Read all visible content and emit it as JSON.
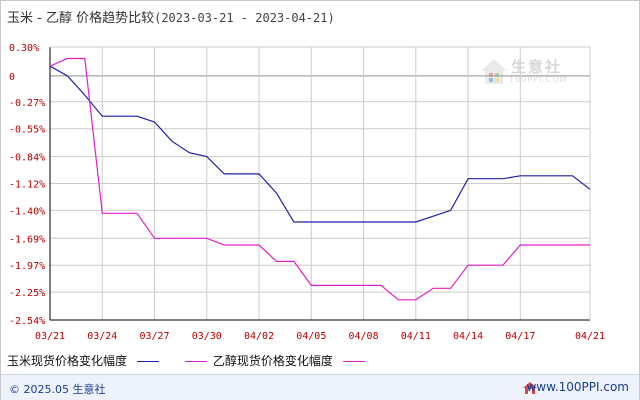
{
  "title": {
    "main": "玉米 - 乙醇 价格趋势比较",
    "range": "(2023-03-21 - 2023-04-21)"
  },
  "watermark": {
    "text": "生意社",
    "url": "100PPI.COM"
  },
  "legend": {
    "series1": "玉米现货价格变化幅度",
    "series2": "乙醇现货价格变化幅度"
  },
  "footer": {
    "copyright": "© 2025.05 生意社",
    "url": "www.100PPI.com"
  },
  "colors": {
    "series1": "#1f1fa8",
    "series2": "#e020c8",
    "grid": "#cccccc",
    "tick": "#b80000",
    "axis": "#000000"
  },
  "chart_data": {
    "type": "line",
    "title": "玉米 - 乙醇 价格趋势比较",
    "y_tick_labels": [
      "0.30%",
      "0",
      "-0.27%",
      "-0.55%",
      "-0.84%",
      "-1.12%",
      "-1.40%",
      "-1.69%",
      "-1.97%",
      "-2.25%",
      "-2.54%"
    ],
    "y_tick_values": [
      0.3,
      0,
      -0.27,
      -0.55,
      -0.84,
      -1.12,
      -1.4,
      -1.69,
      -1.97,
      -2.25,
      -2.54
    ],
    "ylim": [
      -2.54,
      0.3
    ],
    "x_tick_labels": [
      "03/21",
      "03/24",
      "03/27",
      "03/30",
      "04/02",
      "04/05",
      "04/08",
      "04/11",
      "04/14",
      "04/17",
      "04/21"
    ],
    "xlim": [
      "2023-03-21",
      "2023-04-21"
    ],
    "grid": true,
    "legend_position": "bottom",
    "series": [
      {
        "name": "玉米现货价格变化幅度",
        "color": "#1f1fa8",
        "points": [
          [
            "2023-03-21",
            0.1
          ],
          [
            "2023-03-22",
            0.0
          ],
          [
            "2023-03-23",
            -0.2
          ],
          [
            "2023-03-24",
            -0.42
          ],
          [
            "2023-03-25",
            -0.42
          ],
          [
            "2023-03-26",
            -0.42
          ],
          [
            "2023-03-27",
            -0.48
          ],
          [
            "2023-03-28",
            -0.68
          ],
          [
            "2023-03-29",
            -0.8
          ],
          [
            "2023-03-30",
            -0.84
          ],
          [
            "2023-03-31",
            -1.02
          ],
          [
            "2023-04-01",
            -1.02
          ],
          [
            "2023-04-02",
            -1.02
          ],
          [
            "2023-04-03",
            -1.22
          ],
          [
            "2023-04-04",
            -1.52
          ],
          [
            "2023-04-05",
            -1.52
          ],
          [
            "2023-04-06",
            -1.52
          ],
          [
            "2023-04-07",
            -1.52
          ],
          [
            "2023-04-08",
            -1.52
          ],
          [
            "2023-04-09",
            -1.52
          ],
          [
            "2023-04-10",
            -1.52
          ],
          [
            "2023-04-11",
            -1.52
          ],
          [
            "2023-04-12",
            -1.46
          ],
          [
            "2023-04-13",
            -1.4
          ],
          [
            "2023-04-14",
            -1.07
          ],
          [
            "2023-04-15",
            -1.07
          ],
          [
            "2023-04-16",
            -1.07
          ],
          [
            "2023-04-17",
            -1.04
          ],
          [
            "2023-04-18",
            -1.04
          ],
          [
            "2023-04-19",
            -1.04
          ],
          [
            "2023-04-20",
            -1.04
          ],
          [
            "2023-04-21",
            -1.18
          ]
        ]
      },
      {
        "name": "乙醇现货价格变化幅度",
        "color": "#e020c8",
        "points": [
          [
            "2023-03-21",
            0.1
          ],
          [
            "2023-03-22",
            0.18
          ],
          [
            "2023-03-23",
            0.18
          ],
          [
            "2023-03-24",
            -1.43
          ],
          [
            "2023-03-25",
            -1.43
          ],
          [
            "2023-03-26",
            -1.43
          ],
          [
            "2023-03-27",
            -1.69
          ],
          [
            "2023-03-28",
            -1.69
          ],
          [
            "2023-03-29",
            -1.69
          ],
          [
            "2023-03-30",
            -1.69
          ],
          [
            "2023-03-31",
            -1.76
          ],
          [
            "2023-04-01",
            -1.76
          ],
          [
            "2023-04-02",
            -1.76
          ],
          [
            "2023-04-03",
            -1.93
          ],
          [
            "2023-04-04",
            -1.93
          ],
          [
            "2023-04-05",
            -2.18
          ],
          [
            "2023-04-06",
            -2.18
          ],
          [
            "2023-04-07",
            -2.18
          ],
          [
            "2023-04-08",
            -2.18
          ],
          [
            "2023-04-09",
            -2.18
          ],
          [
            "2023-04-10",
            -2.33
          ],
          [
            "2023-04-11",
            -2.33
          ],
          [
            "2023-04-12",
            -2.21
          ],
          [
            "2023-04-13",
            -2.21
          ],
          [
            "2023-04-14",
            -1.97
          ],
          [
            "2023-04-15",
            -1.97
          ],
          [
            "2023-04-16",
            -1.97
          ],
          [
            "2023-04-17",
            -1.76
          ],
          [
            "2023-04-18",
            -1.76
          ],
          [
            "2023-04-19",
            -1.76
          ],
          [
            "2023-04-20",
            -1.76
          ],
          [
            "2023-04-21",
            -1.76
          ]
        ]
      }
    ]
  }
}
